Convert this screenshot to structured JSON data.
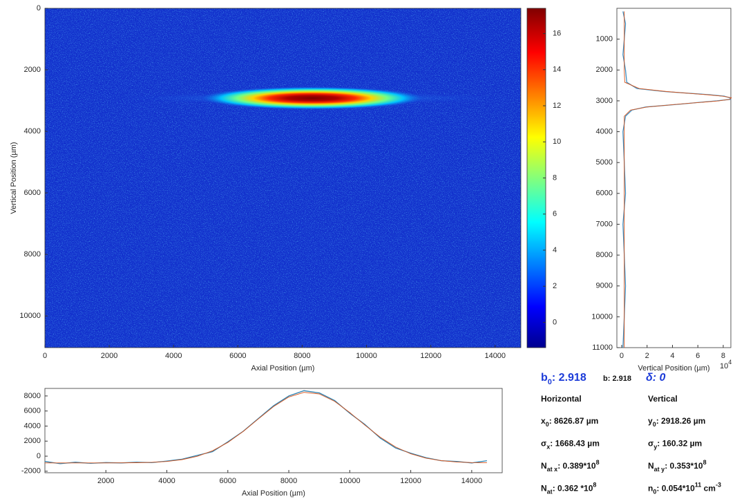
{
  "chart_data": [
    {
      "type": "heatmap",
      "xlabel": "Axial Position (µm)",
      "ylabel": "Vertical Position (µm)",
      "xlim": [
        0,
        14800
      ],
      "ylim": [
        0,
        11030
      ],
      "invert_y": true,
      "xticks": [
        0,
        2000,
        4000,
        6000,
        8000,
        10000,
        12000,
        14000
      ],
      "yticks": [
        0,
        2000,
        4000,
        6000,
        8000,
        10000
      ],
      "colorbar": {
        "colormap": "jet",
        "clim": [
          -1.4,
          17.4
        ],
        "cticks": [
          0,
          2,
          4,
          6,
          8,
          10,
          12,
          14,
          16
        ]
      }
    },
    {
      "type": "line",
      "orientation": "vertical",
      "xlabel": "Vertical Position (µm)",
      "multiplier": [
        {
          "text": "10"
        },
        {
          "text": "4",
          "style": "sup"
        }
      ],
      "xlim": [
        -0.38,
        8.6
      ],
      "xticks": [
        0,
        2,
        4,
        6,
        8
      ],
      "ylim": [
        0,
        11000
      ],
      "invert_y": true,
      "yticks": [
        1000,
        2000,
        3000,
        4000,
        5000,
        6000,
        7000,
        8000,
        9000,
        10000,
        11000
      ],
      "y": [
        100,
        500,
        1000,
        1500,
        2000,
        2400,
        2600,
        2700,
        2800,
        2850,
        2900,
        2950,
        3000,
        3050,
        3100,
        3200,
        3300,
        3500,
        4000,
        5000,
        6000,
        7000,
        8000,
        9000,
        10000,
        11000
      ],
      "series": [
        {
          "color": "#3a8fc4",
          "values": [
            0.1,
            0.3,
            0.2,
            0.1,
            0.3,
            0.4,
            1.2,
            3.4,
            6.9,
            8.1,
            8.5,
            8.6,
            7.5,
            6.1,
            4.8,
            1.9,
            0.8,
            0.3,
            0.1,
            0.2,
            0.3,
            0.1,
            0.2,
            0.3,
            0.2,
            0.1
          ]
        },
        {
          "color": "#d95319",
          "values": [
            0.2,
            0.2,
            0.2,
            0.2,
            0.2,
            0.24,
            1.38,
            3.56,
            6.68,
            7.97,
            8.65,
            8.53,
            7.66,
            6.25,
            4.65,
            2.0,
            0.69,
            0.2,
            0.2,
            0.2,
            0.2,
            0.2,
            0.2,
            0.2,
            0.2,
            0.2
          ]
        }
      ]
    },
    {
      "type": "line",
      "xlabel": "Axial Position (µm)",
      "xlim": [
        0,
        15000
      ],
      "xticks": [
        2000,
        4000,
        6000,
        8000,
        10000,
        12000,
        14000
      ],
      "ylim": [
        -2200,
        9000
      ],
      "yticks": [
        -2000,
        0,
        2000,
        4000,
        6000,
        8000
      ],
      "x": [
        0,
        500,
        1000,
        1500,
        2000,
        2500,
        3000,
        3500,
        4000,
        4500,
        5000,
        5500,
        6000,
        6500,
        7000,
        7500,
        8000,
        8500,
        9000,
        9500,
        10000,
        10500,
        11000,
        11500,
        12000,
        12500,
        13000,
        13500,
        14000,
        14500
      ],
      "series": [
        {
          "color": "#2b7fae",
          "values": [
            -700,
            -1000,
            -800,
            -950,
            -850,
            -900,
            -800,
            -850,
            -650,
            -400,
            100,
            600,
            1900,
            3300,
            5000,
            6700,
            8000,
            8700,
            8400,
            7400,
            5700,
            4200,
            2400,
            1100,
            400,
            -200,
            -600,
            -700,
            -900,
            -600
          ]
        },
        {
          "color": "#d95319",
          "values": [
            -900,
            -900,
            -900,
            -900,
            -896,
            -889,
            -868,
            -816,
            -700,
            -459,
            -15,
            722,
            1818,
            3270,
            4941,
            6583,
            7861,
            8473,
            8268,
            7297,
            5799,
            4104,
            2517,
            1233,
            317,
            -265,
            -597,
            -768,
            -848,
            -881
          ]
        }
      ]
    }
  ],
  "fit_results": {
    "b0": [
      {
        "text": "b"
      },
      {
        "text": "0",
        "style": "sub"
      },
      {
        "text": ": 2.918"
      }
    ],
    "b": "b: 2.918",
    "delta": "δ: 0",
    "horizontal": {
      "title": "Horizontal",
      "rows": [
        [
          {
            "text": "x"
          },
          {
            "text": "0",
            "style": "sub"
          },
          {
            "text": ": 8626.87 µm"
          }
        ],
        [
          {
            "text": "σ"
          },
          {
            "text": "x",
            "style": "sub"
          },
          {
            "text": ": 1668.43 µm"
          }
        ],
        [
          {
            "text": "N"
          },
          {
            "text": "at x",
            "style": "sub"
          },
          {
            "text": ": 0.389*10"
          },
          {
            "text": "8",
            "style": "sup"
          }
        ],
        [
          {
            "text": "N"
          },
          {
            "text": "at",
            "style": "sub"
          },
          {
            "text": ": 0.362 *10"
          },
          {
            "text": "8",
            "style": "sup"
          }
        ]
      ]
    },
    "vertical": {
      "title": "Vertical",
      "rows": [
        [
          {
            "text": "y"
          },
          {
            "text": "0",
            "style": "sub"
          },
          {
            "text": ": 2918.26 µm"
          }
        ],
        [
          {
            "text": "σ"
          },
          {
            "text": "y",
            "style": "sub"
          },
          {
            "text": ": 160.32 µm"
          }
        ],
        [
          {
            "text": "N"
          },
          {
            "text": "at y",
            "style": "sub"
          },
          {
            "text": ": 0.353*10"
          },
          {
            "text": "8",
            "style": "sup"
          }
        ],
        [
          {
            "text": "n"
          },
          {
            "text": "0",
            "style": "sub"
          },
          {
            "text": ": 0.054*10"
          },
          {
            "text": "11",
            "style": "sup"
          },
          {
            "text": " cm"
          },
          {
            "text": "-3",
            "style": "sup"
          }
        ]
      ]
    }
  }
}
